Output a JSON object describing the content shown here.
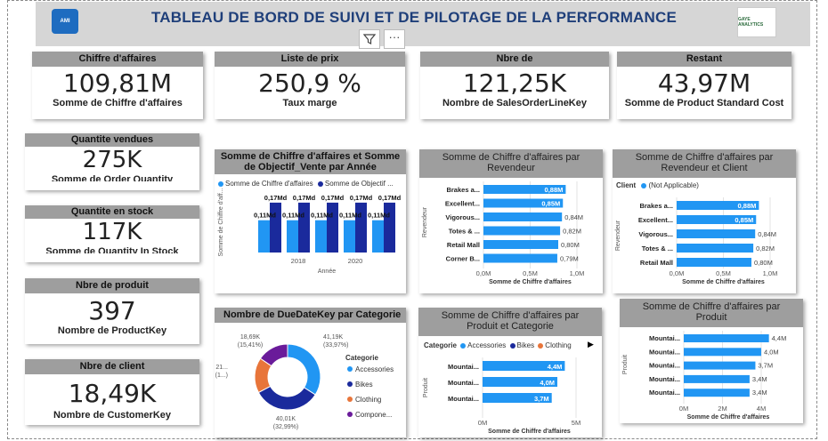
{
  "header": {
    "title": "TABLEAU DE BORD DE SUIVI  ET DE PILOTAGE DE LA PERFORMANCE",
    "logo_left": "AMI",
    "logo_right": "GAYE ANALYTICS"
  },
  "colors": {
    "accent": "#2196f3",
    "dark": "#1a2a9c",
    "orange": "#e8753a",
    "purple": "#6a1b9a",
    "header_gray": "#9e9e9e"
  },
  "icons": {
    "filter": "filter-icon",
    "more": "more-options-icon"
  },
  "kpi": {
    "ca": {
      "header": "Chiffre d'affaires",
      "value": "109,81M",
      "label": "Somme de Chiffre d'affaires"
    },
    "prix": {
      "header": "Liste de prix",
      "value": "250,9 %",
      "label": "Taux marge"
    },
    "nbre": {
      "header": "Nbre de",
      "value": "121,25K",
      "label": "Nombre de SalesOrderLineKey"
    },
    "restant": {
      "header": "Restant",
      "value": "43,97M",
      "label": "Somme de Product Standard Cost"
    },
    "qte_vendues": {
      "header": "Quantite vendues",
      "value": "275K",
      "label": "Somme de Order Quantity"
    },
    "qte_stock": {
      "header": "Quantite en stock",
      "value": "117K",
      "label": "Somme de Quantity In Stock"
    },
    "produit": {
      "header": "Nbre de produit",
      "value": "397",
      "label": "Nombre de ProductKey"
    },
    "client": {
      "header": "Nbre de client",
      "value": "18,49K",
      "label": "Nombre de CustomerKey"
    }
  },
  "chart_data": [
    {
      "type": "bar",
      "title": "Somme de Chiffre d'affaires et Somme de Objectif_Vente par Année",
      "legend": [
        "Somme de Chiffre d'affaires",
        "Somme de Objectif ..."
      ],
      "xlabel": "Année",
      "ylabel": "Somme de Chiffre d'aff...",
      "x_ticks": [
        "2018",
        "2020"
      ],
      "groups": 5,
      "series": [
        {
          "name": "Somme de Chiffre d'affaires",
          "values": [
            0.11,
            0.11,
            0.11,
            0.11,
            0.11
          ],
          "labels": [
            "0,11Md",
            "0,11Md",
            "0,11Md",
            "0,11Md",
            "0,11Md"
          ]
        },
        {
          "name": "Somme de Objectif ...",
          "values": [
            0.17,
            0.17,
            0.17,
            0.17,
            0.17
          ],
          "labels": [
            "0,17Md",
            "0,17Md",
            "0,17Md",
            "0,17Md",
            "0,17Md"
          ]
        }
      ]
    },
    {
      "type": "bar",
      "title": "Somme de Chiffre d'affaires par Revendeur",
      "xlabel": "Somme de Chiffre d'affaires",
      "ylabel": "Revendeur",
      "categories": [
        "Brakes a...",
        "Excellent...",
        "Vigorous...",
        "Totes & ...",
        "Retail Mall",
        "Corner B..."
      ],
      "values": [
        0.88,
        0.85,
        0.84,
        0.82,
        0.8,
        0.79
      ],
      "labels": [
        "0,88M",
        "0,85M",
        "0,84M",
        "0,82M",
        "0,80M",
        "0,79M"
      ],
      "x_ticks": [
        "0,0M",
        "0,5M",
        "1,0M"
      ],
      "xlim": [
        0,
        1.0
      ]
    },
    {
      "type": "bar",
      "title": "Somme de Chiffre d'affaires par Revendeur et Client",
      "legend_title": "Client",
      "legend": [
        "(Not Applicable)"
      ],
      "xlabel": "Somme de Chiffre d'affaires",
      "ylabel": "Revendeur",
      "categories": [
        "Brakes a...",
        "Excellent...",
        "Vigorous...",
        "Totes & ...",
        "Retail Mall"
      ],
      "values": [
        0.88,
        0.85,
        0.84,
        0.82,
        0.8
      ],
      "labels": [
        "0,88M",
        "0,85M",
        "0,84M",
        "0,82M",
        "0,80M"
      ],
      "x_ticks": [
        "0,0M",
        "0,5M",
        "1,0M"
      ],
      "xlim": [
        0,
        1.0
      ]
    },
    {
      "type": "pie",
      "title": "Nombre de DueDateKey par Categorie",
      "legend_title": "Categorie",
      "categories": [
        "Accessories",
        "Bikes",
        "Clothing",
        "Compone..."
      ],
      "values": [
        41.19,
        40.01,
        21,
        18.69
      ],
      "slice_labels": [
        "41,19K\n(33,97%)",
        "40,01K\n(32,99%)",
        "21...\n(1...)",
        "18,69K\n(15,41%)"
      ],
      "colors": [
        "#2196f3",
        "#1a2a9c",
        "#e8753a",
        "#6a1b9a"
      ]
    },
    {
      "type": "bar",
      "title": "Somme de Chiffre d'affaires par Produit et Categorie",
      "legend_title": "Categorie",
      "legend": [
        "Accessories",
        "Bikes",
        "Clothing"
      ],
      "xlabel": "Somme de Chiffre d'affaires",
      "ylabel": "Produit",
      "categories": [
        "Mountai...",
        "Mountai...",
        "Mountai..."
      ],
      "values": [
        4.4,
        4.0,
        3.7
      ],
      "labels": [
        "4,4M",
        "4,0M",
        "3,7M"
      ],
      "x_ticks": [
        "0M",
        "5M"
      ],
      "xlim": [
        0,
        5
      ]
    },
    {
      "type": "bar",
      "title": "Somme de Chiffre d'affaires par Produit",
      "xlabel": "Somme de Chiffre d'affaires",
      "ylabel": "Produit",
      "categories": [
        "Mountai...",
        "Mountai...",
        "Mountai...",
        "Mountai...",
        "Mountai..."
      ],
      "values": [
        4.4,
        4.0,
        3.7,
        3.4,
        3.4
      ],
      "labels": [
        "4,4M",
        "4,0M",
        "3,7M",
        "3,4M",
        "3,4M"
      ],
      "x_ticks": [
        "0M",
        "2M",
        "4M"
      ],
      "xlim": [
        0,
        4.6
      ]
    }
  ]
}
